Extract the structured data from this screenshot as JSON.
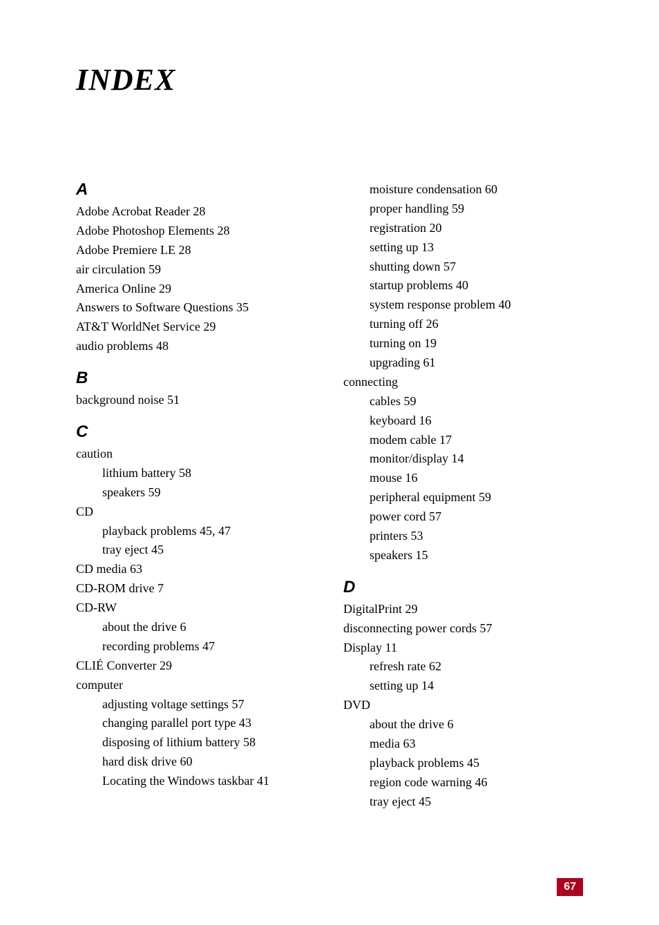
{
  "title": "INDEX",
  "page_number": "67",
  "colors": {
    "page_number_bg": "#b00020",
    "page_number_text": "#ffffff",
    "text": "#000000",
    "background": "#ffffff"
  },
  "typography": {
    "title_fontsize": 44,
    "section_letter_fontsize": 24,
    "entry_fontsize": 18,
    "page_number_fontsize": 16
  },
  "left_column": {
    "sections": [
      {
        "letter": "A",
        "entries": [
          {
            "text": "Adobe Acrobat Reader 28",
            "level": 0
          },
          {
            "text": "Adobe Photoshop Elements 28",
            "level": 0
          },
          {
            "text": "Adobe Premiere LE 28",
            "level": 0
          },
          {
            "text": "air circulation 59",
            "level": 0
          },
          {
            "text": "America Online 29",
            "level": 0
          },
          {
            "text": "Answers to Software Questions 35",
            "level": 0
          },
          {
            "text": "AT&T WorldNet Service 29",
            "level": 0
          },
          {
            "text": "audio problems 48",
            "level": 0
          }
        ]
      },
      {
        "letter": "B",
        "entries": [
          {
            "text": "background noise 51",
            "level": 0
          }
        ]
      },
      {
        "letter": "C",
        "entries": [
          {
            "text": "caution",
            "level": 0
          },
          {
            "text": "lithium battery 58",
            "level": 1
          },
          {
            "text": "speakers 59",
            "level": 1
          },
          {
            "text": "CD",
            "level": 0
          },
          {
            "text": "playback problems 45, 47",
            "level": 1
          },
          {
            "text": "tray eject 45",
            "level": 1
          },
          {
            "text": "CD media 63",
            "level": 0
          },
          {
            "text": "CD-ROM drive 7",
            "level": 0
          },
          {
            "text": "CD-RW",
            "level": 0
          },
          {
            "text": "about the drive 6",
            "level": 1
          },
          {
            "text": "recording problems 47",
            "level": 1
          },
          {
            "text": "CLIÉ Converter 29",
            "level": 0
          },
          {
            "text": "computer",
            "level": 0
          },
          {
            "text": "adjusting voltage settings 57",
            "level": 1
          },
          {
            "text": "changing parallel port type 43",
            "level": 1
          },
          {
            "text": "disposing of lithium battery 58",
            "level": 1
          },
          {
            "text": "hard disk drive 60",
            "level": 1
          },
          {
            "text": "Locating the Windows taskbar 41",
            "level": 1
          }
        ]
      }
    ]
  },
  "right_column": {
    "sections": [
      {
        "letter": "",
        "entries": [
          {
            "text": "moisture condensation 60",
            "level": 1
          },
          {
            "text": "proper handling 59",
            "level": 1
          },
          {
            "text": "registration 20",
            "level": 1
          },
          {
            "text": "setting up 13",
            "level": 1
          },
          {
            "text": "shutting down 57",
            "level": 1
          },
          {
            "text": "startup problems 40",
            "level": 1
          },
          {
            "text": "system response problem 40",
            "level": 1
          },
          {
            "text": "turning off 26",
            "level": 1
          },
          {
            "text": "turning on 19",
            "level": 1
          },
          {
            "text": "upgrading 61",
            "level": 1
          },
          {
            "text": "connecting",
            "level": 0
          },
          {
            "text": "cables 59",
            "level": 1
          },
          {
            "text": "keyboard 16",
            "level": 1
          },
          {
            "text": "modem cable 17",
            "level": 1
          },
          {
            "text": "monitor/display 14",
            "level": 1
          },
          {
            "text": "mouse 16",
            "level": 1
          },
          {
            "text": "peripheral equipment 59",
            "level": 1
          },
          {
            "text": "power cord 57",
            "level": 1
          },
          {
            "text": "printers 53",
            "level": 1
          },
          {
            "text": "speakers 15",
            "level": 1
          }
        ]
      },
      {
        "letter": "D",
        "entries": [
          {
            "text": "DigitalPrint 29",
            "level": 0
          },
          {
            "text": "disconnecting power cords 57",
            "level": 0
          },
          {
            "text": "Display 11",
            "level": 0
          },
          {
            "text": "refresh rate 62",
            "level": 1
          },
          {
            "text": "setting up 14",
            "level": 1
          },
          {
            "text": "DVD",
            "level": 0
          },
          {
            "text": "about the drive 6",
            "level": 1
          },
          {
            "text": "media 63",
            "level": 1
          },
          {
            "text": "playback problems 45",
            "level": 1
          },
          {
            "text": "region code warning 46",
            "level": 1
          },
          {
            "text": "tray eject 45",
            "level": 1
          }
        ]
      }
    ]
  }
}
